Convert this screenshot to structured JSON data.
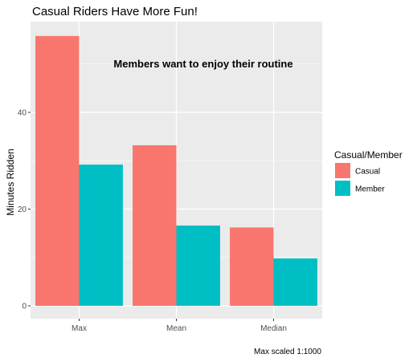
{
  "chart_data": {
    "type": "bar",
    "title": "Casual Riders Have More Fun!",
    "annotation": "Members want to enjoy their routine",
    "caption": "Max scaled 1:1000",
    "xlabel": "",
    "ylabel": "Minutes Ridden",
    "categories": [
      "Max",
      "Mean",
      "Median"
    ],
    "ylim": [
      -2.5,
      60
    ],
    "yticks": [
      0,
      20,
      40
    ],
    "grid": true,
    "legend": {
      "title": "Casual/Member",
      "position": "right"
    },
    "series": [
      {
        "name": "Casual",
        "color": "#F8766D",
        "values": [
          55.8,
          33.2,
          16.2
        ]
      },
      {
        "name": "Member",
        "color": "#00BFC4",
        "values": [
          29.2,
          16.6,
          9.8
        ]
      }
    ]
  }
}
